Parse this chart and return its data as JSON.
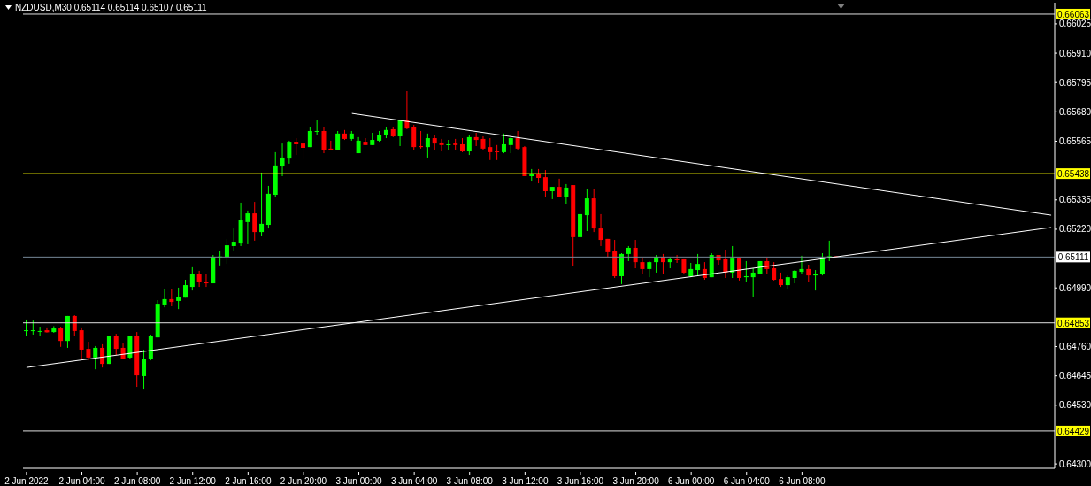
{
  "chart_data": {
    "type": "candlestick",
    "title": "NZDUSD,M30 0.65114 0.65114 0.65107 0.65111",
    "categories": [
      "2 Jun 2022",
      null,
      null,
      null,
      null,
      null,
      null,
      null,
      "2 Jun 04:00",
      null,
      null,
      null,
      null,
      null,
      null,
      null,
      "2 Jun 08:00",
      null,
      null,
      null,
      null,
      null,
      null,
      null,
      "2 Jun 12:00",
      null,
      null,
      null,
      null,
      null,
      null,
      null,
      "2 Jun 16:00",
      null,
      null,
      null,
      null,
      null,
      null,
      null,
      "2 Jun 20:00",
      null,
      null,
      null,
      null,
      null,
      null,
      null,
      "3 Jun 00:00",
      null,
      null,
      null,
      null,
      null,
      null,
      null,
      "3 Jun 04:00",
      null,
      null,
      null,
      null,
      null,
      null,
      null,
      "3 Jun 08:00",
      null,
      null,
      null,
      null,
      null,
      null,
      null,
      "3 Jun 12:00",
      null,
      null,
      null,
      null,
      null,
      null,
      null,
      "3 Jun 16:00",
      null,
      null,
      null,
      null,
      null,
      null,
      null,
      "3 Jun 20:00",
      null,
      null,
      null,
      null,
      null,
      null,
      null,
      "6 Jun 00:00",
      null,
      null,
      null,
      null,
      null,
      null,
      null,
      "6 Jun 04:00",
      null,
      null,
      null,
      null,
      null,
      null,
      null,
      "6 Jun 08:00",
      null,
      null,
      null,
      null,
      null,
      null,
      null,
      null,
      null,
      null,
      null,
      null,
      null,
      null,
      null,
      null,
      null,
      null,
      null,
      null,
      null,
      null,
      null,
      null,
      null,
      null,
      null,
      null,
      null,
      null,
      null,
      null,
      null,
      null,
      null,
      null
    ],
    "ohlc": [
      [
        0.64823,
        0.64866,
        0.64803,
        0.64824
      ],
      [
        0.64822,
        0.64862,
        0.64807,
        0.64824
      ],
      [
        0.6482,
        0.64838,
        0.64803,
        0.64821
      ],
      [
        0.64824,
        0.64835,
        0.64815,
        0.64816
      ],
      [
        0.64817,
        0.6484,
        0.64814,
        0.64831
      ],
      [
        0.64831,
        0.64838,
        0.64759,
        0.64782
      ],
      [
        0.64782,
        0.6488,
        0.64755,
        0.6488
      ],
      [
        0.6488,
        0.64883,
        0.64803,
        0.64821
      ],
      [
        0.64824,
        0.64835,
        0.64713,
        0.64748
      ],
      [
        0.64751,
        0.64779,
        0.64706,
        0.64717
      ],
      [
        0.64717,
        0.64762,
        0.64671,
        0.64755
      ],
      [
        0.64755,
        0.64769,
        0.64678,
        0.64692
      ],
      [
        0.64692,
        0.64803,
        0.64692,
        0.648
      ],
      [
        0.64803,
        0.6481,
        0.64727,
        0.64751
      ],
      [
        0.64755,
        0.64772,
        0.6471,
        0.64713
      ],
      [
        0.64717,
        0.648,
        0.64713,
        0.648
      ],
      [
        0.648,
        0.64817,
        0.64602,
        0.64647
      ],
      [
        0.64644,
        0.64748,
        0.64595,
        0.64713
      ],
      [
        0.6471,
        0.64807,
        0.64706,
        0.648
      ],
      [
        0.64796,
        0.64942,
        0.64796,
        0.64928
      ],
      [
        0.64925,
        0.64987,
        0.64914,
        0.64946
      ],
      [
        0.64946,
        0.64987,
        0.64918,
        0.64935
      ],
      [
        0.64939,
        0.64991,
        0.64907,
        0.64956
      ],
      [
        0.64952,
        0.65022,
        0.64952,
        0.65001
      ],
      [
        0.64994,
        0.65071,
        0.6498,
        0.65046
      ],
      [
        0.65046,
        0.65057,
        0.64994,
        0.65012
      ],
      [
        0.65015,
        0.65043,
        0.64994,
        0.65008
      ],
      [
        0.65008,
        0.65119,
        0.65008,
        0.65112
      ],
      [
        0.6511,
        0.65133,
        0.65078,
        0.65113
      ],
      [
        0.65112,
        0.65182,
        0.65084,
        0.65157
      ],
      [
        0.65154,
        0.65223,
        0.65133,
        0.65171
      ],
      [
        0.65164,
        0.65324,
        0.65154,
        0.65255
      ],
      [
        0.65248,
        0.65293,
        0.65161,
        0.65282
      ],
      [
        0.65282,
        0.65327,
        0.65175,
        0.65209
      ],
      [
        0.65209,
        0.65442,
        0.65192,
        0.65241
      ],
      [
        0.65237,
        0.6539,
        0.65223,
        0.65359
      ],
      [
        0.65355,
        0.65522,
        0.65345,
        0.6547
      ],
      [
        0.65466,
        0.65556,
        0.65428,
        0.65501
      ],
      [
        0.65497,
        0.65567,
        0.65477,
        0.65563
      ],
      [
        0.65563,
        0.65577,
        0.65511,
        0.65553
      ],
      [
        0.65556,
        0.6557,
        0.65494,
        0.65539
      ],
      [
        0.65542,
        0.65619,
        0.65542,
        0.65605
      ],
      [
        0.65604,
        0.65647,
        0.65588,
        0.65605
      ],
      [
        0.65605,
        0.65622,
        0.65518,
        0.65532
      ],
      [
        0.65536,
        0.65567,
        0.65529,
        0.65529
      ],
      [
        0.65529,
        0.65605,
        0.65529,
        0.65595
      ],
      [
        0.65595,
        0.65609,
        0.6557,
        0.65574
      ],
      [
        0.65574,
        0.65605,
        0.65567,
        0.65595
      ],
      [
        0.65518,
        0.65581,
        0.65518,
        0.65567
      ],
      [
        0.65563,
        0.65577,
        0.6555,
        0.6555
      ],
      [
        0.6555,
        0.65598,
        0.6555,
        0.6557
      ],
      [
        0.65567,
        0.65605,
        0.65563,
        0.65591
      ],
      [
        0.65588,
        0.65622,
        0.65577,
        0.65609
      ],
      [
        0.65612,
        0.65619,
        0.65581,
        0.65584
      ],
      [
        0.65584,
        0.6565,
        0.65546,
        0.6565
      ],
      [
        0.6565,
        0.65761,
        0.65612,
        0.65615
      ],
      [
        0.65619,
        0.65629,
        0.65532,
        0.65542
      ],
      [
        0.65546,
        0.65605,
        0.65536,
        0.65542
      ],
      [
        0.65542,
        0.65595,
        0.65501,
        0.65577
      ],
      [
        0.65577,
        0.65588,
        0.65532,
        0.65556
      ],
      [
        0.6556,
        0.65574,
        0.65525,
        0.6555
      ],
      [
        0.6555,
        0.6557,
        0.65532,
        0.65553
      ],
      [
        0.65556,
        0.65574,
        0.65532,
        0.6555
      ],
      [
        0.65553,
        0.65577,
        0.65522,
        0.65525
      ],
      [
        0.65525,
        0.65588,
        0.65511,
        0.65581
      ],
      [
        0.65581,
        0.65598,
        0.65546,
        0.6557
      ],
      [
        0.65574,
        0.65584,
        0.65529,
        0.65536
      ],
      [
        0.65542,
        0.65577,
        0.65491,
        0.65522
      ],
      [
        0.65525,
        0.6555,
        0.65491,
        0.65522
      ],
      [
        0.65522,
        0.65595,
        0.65518,
        0.65553
      ],
      [
        0.6555,
        0.65584,
        0.65518,
        0.65577
      ],
      [
        0.65577,
        0.65605,
        0.65529,
        0.65536
      ],
      [
        0.65542,
        0.65546,
        0.65428,
        0.65428
      ],
      [
        0.65428,
        0.65456,
        0.65407,
        0.65435
      ],
      [
        0.65435,
        0.65456,
        0.654,
        0.65421
      ],
      [
        0.65424,
        0.65452,
        0.65345,
        0.65369
      ],
      [
        0.65369,
        0.65386,
        0.65338,
        0.65386
      ],
      [
        0.65386,
        0.65418,
        0.65345,
        0.65345
      ],
      [
        0.65348,
        0.65397,
        0.6532,
        0.65383
      ],
      [
        0.65393,
        0.65393,
        0.65074,
        0.65189
      ],
      [
        0.65189,
        0.65307,
        0.65185,
        0.65279
      ],
      [
        0.65275,
        0.65379,
        0.65213,
        0.65341
      ],
      [
        0.65341,
        0.65376,
        0.65209,
        0.65223
      ],
      [
        0.65223,
        0.65279,
        0.65154,
        0.65178
      ],
      [
        0.65182,
        0.65182,
        0.65112,
        0.6513
      ],
      [
        0.65133,
        0.65178,
        0.65029,
        0.65036
      ],
      [
        0.65036,
        0.65126,
        0.65005,
        0.65123
      ],
      [
        0.65123,
        0.65154,
        0.65095,
        0.65147
      ],
      [
        0.65147,
        0.65178,
        0.65067,
        0.65091
      ],
      [
        0.65091,
        0.65109,
        0.65046,
        0.65064
      ],
      [
        0.65064,
        0.65095,
        0.65032,
        0.65091
      ],
      [
        0.65091,
        0.65119,
        0.6505,
        0.65112
      ],
      [
        0.65112,
        0.65123,
        0.65043,
        0.65091
      ],
      [
        0.65091,
        0.65109,
        0.65067,
        0.65102
      ],
      [
        0.65102,
        0.65119,
        0.65088,
        0.65099
      ],
      [
        0.65102,
        0.65102,
        0.65046,
        0.6505
      ],
      [
        0.65036,
        0.65088,
        0.65032,
        0.65064
      ],
      [
        0.6506,
        0.65123,
        0.65039,
        0.65084
      ],
      [
        0.65064,
        0.65091,
        0.65022,
        0.65029
      ],
      [
        0.65032,
        0.65126,
        0.65032,
        0.65119
      ],
      [
        0.65119,
        0.65119,
        0.65081,
        0.65098
      ],
      [
        0.65102,
        0.6514,
        0.65029,
        0.6505
      ],
      [
        0.6505,
        0.65154,
        0.65029,
        0.65105
      ],
      [
        0.65105,
        0.65109,
        0.65019,
        0.65029
      ],
      [
        0.65032,
        0.65095,
        0.65015,
        0.65036
      ],
      [
        0.65032,
        0.65067,
        0.64956,
        0.6505
      ],
      [
        0.65046,
        0.65095,
        0.65046,
        0.65095
      ],
      [
        0.65095,
        0.65109,
        0.65046,
        0.65064
      ],
      [
        0.65067,
        0.65091,
        0.65019,
        0.65022
      ],
      [
        0.65025,
        0.6505,
        0.64994,
        0.65001
      ],
      [
        0.65001,
        0.65039,
        0.64984,
        0.65032
      ],
      [
        0.65029,
        0.6506,
        0.65008,
        0.65057
      ],
      [
        0.65053,
        0.65116,
        0.65046,
        0.65064
      ],
      [
        0.65064,
        0.65081,
        0.65015,
        0.65039
      ],
      [
        0.65039,
        0.6506,
        0.6498,
        0.65046
      ],
      [
        0.65043,
        0.65126,
        0.65039,
        0.65109
      ],
      [
        0.65109,
        0.65175,
        0.65095,
        0.65114
      ],
      [
        0.65114,
        0.65114,
        0.65107,
        0.65111
      ],
      null,
      null,
      null,
      null,
      null,
      null,
      null,
      null,
      null,
      null,
      null,
      null,
      null,
      null,
      null,
      null,
      null,
      null,
      null,
      null,
      null,
      null,
      null,
      null,
      null,
      null,
      null,
      null,
      null,
      null,
      null
    ],
    "series": [
      {
        "type": "line",
        "color": "#ffffff",
        "values": [
          0.64678,
          null,
          null,
          null,
          null,
          null,
          null,
          null,
          null,
          null,
          null,
          null,
          null,
          null,
          null,
          null,
          null,
          null,
          null,
          null,
          null,
          null,
          null,
          null,
          null,
          null,
          null,
          null,
          null,
          null,
          null,
          null,
          null,
          null,
          null,
          null,
          null,
          null,
          null,
          null,
          null,
          null,
          null,
          null,
          null,
          null,
          null,
          null,
          null,
          null,
          null,
          null,
          null,
          null,
          null,
          null,
          null,
          null,
          null,
          null,
          null,
          null,
          null,
          null,
          null,
          null,
          null,
          null,
          null,
          null,
          null,
          null,
          null,
          null,
          null,
          null,
          null,
          null,
          null,
          null,
          null,
          null,
          null,
          null,
          null,
          null,
          null,
          null,
          null,
          null,
          null,
          null,
          null,
          null,
          null,
          null,
          null,
          null,
          null,
          null,
          null,
          null,
          null,
          null,
          null,
          null,
          null,
          null,
          null,
          null,
          null,
          null,
          null,
          null,
          null,
          null,
          null,
          null,
          null,
          null,
          null,
          null,
          null,
          null,
          null,
          null,
          null,
          null,
          null,
          null,
          null,
          null,
          null,
          null,
          null,
          null,
          null,
          null,
          null,
          null,
          null,
          null,
          null,
          null,
          null,
          null,
          null,
          null,
          0.65227
        ]
      },
      {
        "type": "line",
        "color": "#ffffff",
        "values": [
          null,
          null,
          null,
          null,
          null,
          null,
          null,
          null,
          null,
          null,
          null,
          null,
          null,
          null,
          null,
          null,
          null,
          null,
          null,
          null,
          null,
          null,
          null,
          null,
          null,
          null,
          null,
          null,
          null,
          null,
          null,
          null,
          null,
          null,
          null,
          null,
          null,
          null,
          null,
          null,
          null,
          null,
          null,
          null,
          null,
          null,
          null,
          0.65674,
          null,
          null,
          null,
          null,
          null,
          null,
          null,
          null,
          null,
          null,
          null,
          null,
          null,
          null,
          null,
          null,
          null,
          null,
          null,
          null,
          null,
          null,
          null,
          null,
          null,
          null,
          null,
          null,
          null,
          null,
          null,
          null,
          null,
          null,
          null,
          null,
          null,
          null,
          null,
          null,
          null,
          null,
          null,
          null,
          null,
          null,
          null,
          null,
          null,
          null,
          null,
          null,
          null,
          null,
          null,
          null,
          null,
          null,
          null,
          null,
          null,
          null,
          null,
          null,
          null,
          null,
          null,
          null,
          null,
          null,
          null,
          null,
          null,
          null,
          null,
          null,
          null,
          null,
          null,
          null,
          null,
          null,
          null,
          null,
          null,
          null,
          null,
          null,
          null,
          null,
          null,
          null,
          null,
          null,
          null,
          null,
          null,
          null,
          null,
          null,
          0.65275
        ]
      }
    ],
    "ylim": [
      0.64283,
      0.66108
    ],
    "yticks": [
      {
        "value": 0.643,
        "label": "0.64300"
      },
      {
        "value": 0.6453,
        "label": "0.64530"
      },
      {
        "value": 0.64645,
        "label": "0.64645"
      },
      {
        "value": 0.6476,
        "label": "0.64760"
      },
      {
        "value": 0.6499,
        "label": "0.64990"
      },
      {
        "value": 0.6522,
        "label": "0.65220"
      },
      {
        "value": 0.65335,
        "label": "0.65335"
      },
      {
        "value": 0.65565,
        "label": "0.65565"
      },
      {
        "value": 0.6568,
        "label": "0.65680"
      },
      {
        "value": 0.65795,
        "label": "0.65795"
      },
      {
        "value": 0.6591,
        "label": "0.65910"
      },
      {
        "value": 0.66025,
        "label": "0.66025"
      }
    ],
    "ref_lines": [
      {
        "axis": "y",
        "value": 0.66063,
        "label": "0.66063",
        "color": "#e0e0e0"
      },
      {
        "axis": "y",
        "value": 0.65438,
        "label": "0.65438",
        "color": "#ffff00"
      },
      {
        "axis": "y",
        "value": 0.65111,
        "label": "0.65111",
        "color": "#778899"
      },
      {
        "axis": "y",
        "value": 0.64853,
        "label": "0.64853",
        "color": "#e0e0e0"
      },
      {
        "axis": "y",
        "value": 0.64429,
        "label": "0.64429",
        "color": "#e0e0e0"
      }
    ]
  }
}
